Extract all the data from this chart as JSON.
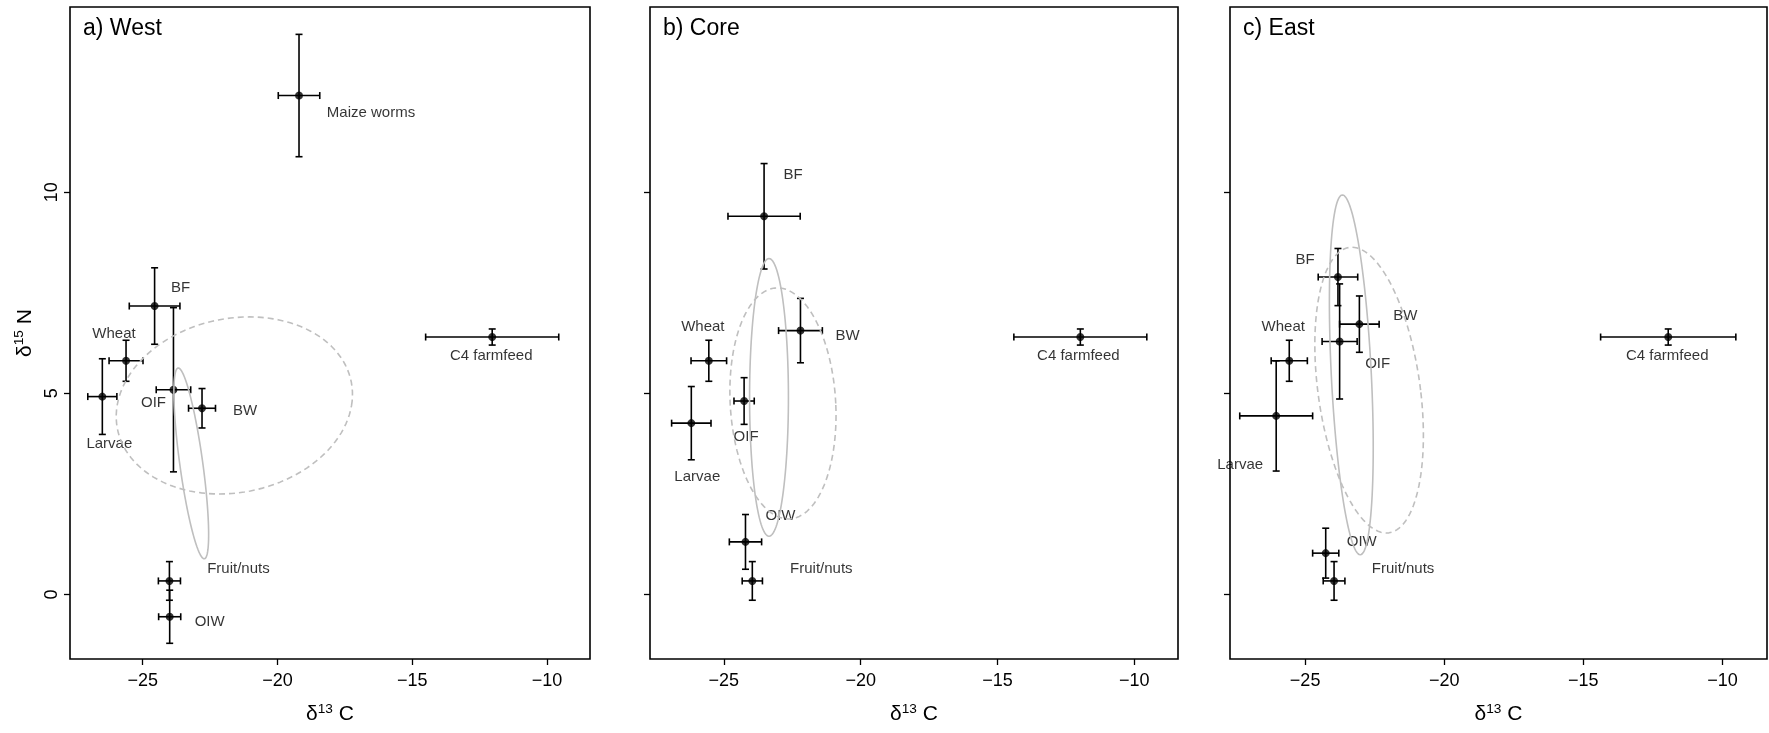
{
  "chart_data": [
    {
      "type": "scatter",
      "title": "a) West",
      "xlabel": "δ$^{13}$ C",
      "ylabel": "δ$^{15}$ N",
      "xlim": [
        -27.7,
        -8.4
      ],
      "ylim": [
        -1.6,
        14.6
      ],
      "xticks": [
        {
          "value": -25,
          "label": "−25"
        },
        {
          "value": -20,
          "label": "−20"
        },
        {
          "value": -15,
          "label": "−15"
        },
        {
          "value": -10,
          "label": "−10"
        }
      ],
      "yticks": [
        0,
        5,
        10
      ],
      "marker": "circle",
      "grid": false,
      "legend": false,
      "series": [
        {
          "name": "Maize worms",
          "color": "#000000",
          "x": [
            -19.2
          ],
          "values": [
            12.4
          ],
          "xerrors": [
            0.77
          ],
          "errors": [
            1.52
          ]
        },
        {
          "name": "BF",
          "color": "#000000",
          "x": [
            -24.56
          ],
          "values": [
            7.17
          ],
          "xerrors": [
            0.94
          ],
          "errors": [
            0.95
          ]
        },
        {
          "name": "Wheat",
          "color": "#000000",
          "x": [
            -25.62
          ],
          "values": [
            5.81
          ],
          "xerrors": [
            0.63
          ],
          "errors": [
            0.51
          ]
        },
        {
          "name": "Larvae",
          "color": "#000000",
          "x": [
            -26.5
          ],
          "values": [
            4.92
          ],
          "xerrors": [
            0.54
          ],
          "errors": [
            0.94
          ]
        },
        {
          "name": "OIF",
          "color": "#000000",
          "x": [
            -23.86
          ],
          "values": [
            5.09
          ],
          "xerrors": [
            0.64
          ],
          "errors": [
            2.04
          ]
        },
        {
          "name": "BW",
          "color": "#000000",
          "x": [
            -22.8
          ],
          "values": [
            4.63
          ],
          "xerrors": [
            0.5
          ],
          "errors": [
            0.49
          ]
        },
        {
          "name": "Fruit/nuts",
          "color": "#000000",
          "x": [
            -24.01
          ],
          "values": [
            0.34
          ],
          "xerrors": [
            0.41
          ],
          "errors": [
            0.48
          ]
        },
        {
          "name": "OIW",
          "color": "#000000",
          "x": [
            -24.0
          ],
          "values": [
            -0.55
          ],
          "xerrors": [
            0.41
          ],
          "errors": [
            0.66
          ]
        },
        {
          "name": "C4 farmfeed",
          "color": "#000000",
          "x": [
            -12.03
          ],
          "values": [
            6.4
          ],
          "xerrors": [
            2.47
          ],
          "errors": [
            0.2
          ]
        }
      ]
    },
    {
      "type": "scatter",
      "title": "b) Core",
      "xlabel": "δ$^{13}$ C",
      "xlim": [
        -27.7,
        -8.4
      ],
      "ylim": [
        -1.6,
        14.6
      ],
      "tick_labels": "x",
      "xticks": [
        {
          "value": -25,
          "label": "−25"
        },
        {
          "value": -20,
          "label": "−20"
        },
        {
          "value": -15,
          "label": "−15"
        },
        {
          "value": -10,
          "label": "−10"
        }
      ],
      "yticks": [
        0,
        5,
        10
      ],
      "marker": "circle",
      "grid": false,
      "legend": false,
      "series": [
        {
          "name": "BF",
          "color": "#000000",
          "x": [
            -23.53
          ],
          "values": [
            9.4
          ],
          "xerrors": [
            1.32
          ],
          "errors": [
            1.31
          ]
        },
        {
          "name": "Wheat",
          "color": "#000000",
          "x": [
            -25.55
          ],
          "values": [
            5.81
          ],
          "xerrors": [
            0.65
          ],
          "errors": [
            0.51
          ]
        },
        {
          "name": "Larvae",
          "color": "#000000",
          "x": [
            -26.19
          ],
          "values": [
            4.26
          ],
          "xerrors": [
            0.72
          ],
          "errors": [
            0.91
          ]
        },
        {
          "name": "OIF",
          "color": "#000000",
          "x": [
            -24.26
          ],
          "values": [
            4.81
          ],
          "xerrors": [
            0.37
          ],
          "errors": [
            0.58
          ]
        },
        {
          "name": "BW",
          "color": "#000000",
          "x": [
            -22.2
          ],
          "values": [
            6.56
          ],
          "xerrors": [
            0.8
          ],
          "errors": [
            0.8
          ]
        },
        {
          "name": "Fruit/nuts",
          "color": "#000000",
          "x": [
            -23.96
          ],
          "values": [
            0.34
          ],
          "xerrors": [
            0.37
          ],
          "errors": [
            0.48
          ]
        },
        {
          "name": "OIW",
          "color": "#000000",
          "x": [
            -24.21
          ],
          "values": [
            1.31
          ],
          "xerrors": [
            0.59
          ],
          "errors": [
            0.68
          ]
        },
        {
          "name": "C4 farmfeed",
          "color": "#000000",
          "x": [
            -11.97
          ],
          "values": [
            6.4
          ],
          "xerrors": [
            2.43
          ],
          "errors": [
            0.2
          ]
        }
      ]
    },
    {
      "type": "scatter",
      "title": "c) East",
      "xlabel": "δ$^{13}$ C",
      "xlim": [
        -27.7,
        -8.4
      ],
      "ylim": [
        -1.6,
        14.6
      ],
      "tick_labels": "x",
      "xticks": [
        {
          "value": -25,
          "label": "−25"
        },
        {
          "value": -20,
          "label": "−20"
        },
        {
          "value": -15,
          "label": "−15"
        },
        {
          "value": -10,
          "label": "−10"
        }
      ],
      "yticks": [
        0,
        5,
        10
      ],
      "marker": "circle",
      "grid": false,
      "legend": false,
      "series": [
        {
          "name": "BF",
          "color": "#000000",
          "x": [
            -23.82
          ],
          "values": [
            7.89
          ],
          "xerrors": [
            0.71
          ],
          "errors": [
            0.71
          ]
        },
        {
          "name": "Wheat",
          "color": "#000000",
          "x": [
            -25.57
          ],
          "values": [
            5.81
          ],
          "xerrors": [
            0.65
          ],
          "errors": [
            0.51
          ]
        },
        {
          "name": "Larvae",
          "color": "#000000",
          "x": [
            -26.04
          ],
          "values": [
            4.44
          ],
          "xerrors": [
            1.31
          ],
          "errors": [
            1.37
          ]
        },
        {
          "name": "OIF",
          "color": "#000000",
          "x": [
            -23.76
          ],
          "values": [
            6.29
          ],
          "xerrors": [
            0.63
          ],
          "errors": [
            1.43
          ]
        },
        {
          "name": "BW",
          "color": "#000000",
          "x": [
            -23.05
          ],
          "values": [
            6.72
          ],
          "xerrors": [
            0.71
          ],
          "errors": [
            0.7
          ]
        },
        {
          "name": "Fruit/nuts",
          "color": "#000000",
          "x": [
            -23.96
          ],
          "values": [
            0.34
          ],
          "xerrors": [
            0.39
          ],
          "errors": [
            0.48
          ]
        },
        {
          "name": "OIW",
          "color": "#000000",
          "x": [
            -24.26
          ],
          "values": [
            1.03
          ],
          "xerrors": [
            0.47
          ],
          "errors": [
            0.62
          ]
        },
        {
          "name": "C4 farmfeed",
          "color": "#000000",
          "x": [
            -11.95
          ],
          "values": [
            6.4
          ],
          "xerrors": [
            2.43
          ],
          "errors": [
            0.2
          ]
        }
      ]
    }
  ]
}
